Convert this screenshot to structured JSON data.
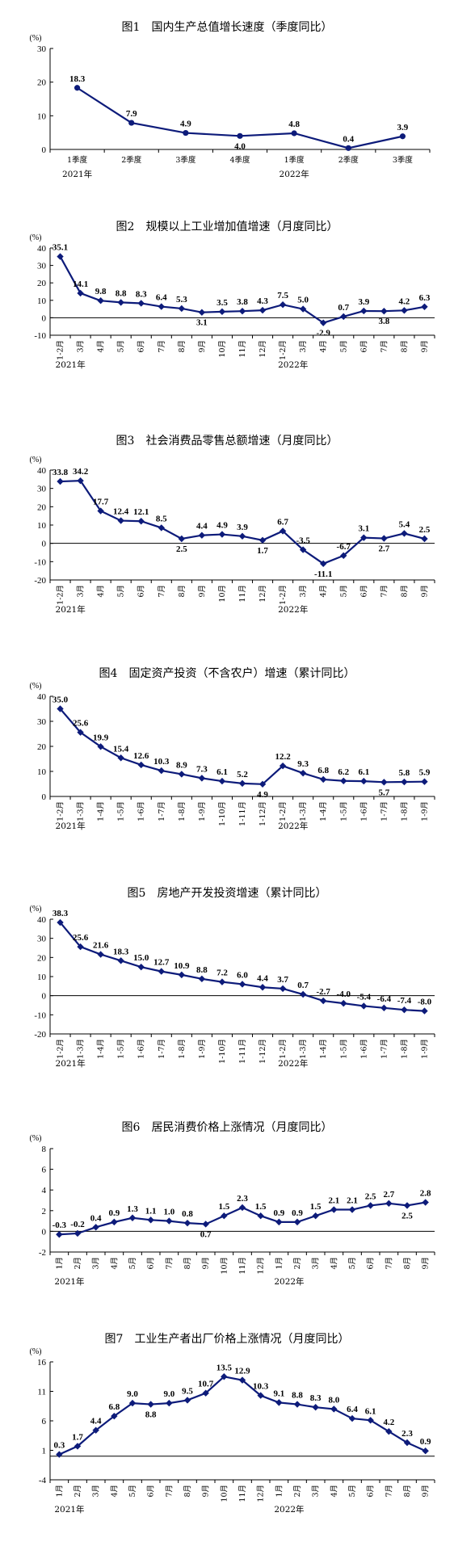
{
  "chart_data": [
    {
      "type": "line",
      "title": "图1　国内生产总值增长速度（季度同比）",
      "unit": "(%)",
      "categories": [
        "1季度",
        "2季度",
        "3季度",
        "4季度",
        "1季度",
        "2季度",
        "3季度"
      ],
      "year_labels": [
        {
          "label": "2021年",
          "index": 0
        },
        {
          "label": "2022年",
          "index": 4
        }
      ],
      "values": [
        18.3,
        7.9,
        4.9,
        4.0,
        4.8,
        0.4,
        3.9
      ],
      "labels": [
        "18.3",
        "7.9",
        "4.9",
        "4.0",
        "4.8",
        "0.4",
        "3.9"
      ],
      "ylim": [
        0,
        30
      ],
      "yticks": [
        0,
        10,
        20,
        30
      ],
      "marker": "circle",
      "color": "#0d1b7a",
      "grid": false
    },
    {
      "type": "line",
      "title": "图2　规模以上工业增加值增速（月度同比）",
      "unit": "(%)",
      "categories": [
        "1-2月",
        "3月",
        "4月",
        "5月",
        "6月",
        "7月",
        "8月",
        "9月",
        "10月",
        "11月",
        "12月",
        "1-2月",
        "3月",
        "4月",
        "5月",
        "6月",
        "7月",
        "8月",
        "9月"
      ],
      "year_labels": [
        {
          "label": "2021年",
          "index": 0
        },
        {
          "label": "2022年",
          "index": 11
        }
      ],
      "values": [
        35.1,
        14.1,
        9.8,
        8.8,
        8.3,
        6.4,
        5.3,
        3.1,
        3.5,
        3.8,
        4.3,
        7.5,
        5.0,
        -2.9,
        0.7,
        3.9,
        3.8,
        4.2,
        6.3
      ],
      "labels": [
        "35.1",
        "14.1",
        "9.8",
        "8.8",
        "8.3",
        "6.4",
        "5.3",
        "3.1",
        "3.5",
        "3.8",
        "4.3",
        "7.5",
        "5.0",
        "-2.9",
        "0.7",
        "3.9",
        "3.8",
        "4.2",
        "6.3"
      ],
      "ylim": [
        -10,
        40
      ],
      "yticks": [
        -10,
        0,
        10,
        20,
        30,
        40
      ],
      "marker": "diamond",
      "color": "#0d1b7a",
      "grid": false
    },
    {
      "type": "line",
      "title": "图3　社会消费品零售总额增速（月度同比）",
      "unit": "(%)",
      "categories": [
        "1-2月",
        "3月",
        "4月",
        "5月",
        "6月",
        "7月",
        "8月",
        "9月",
        "10月",
        "11月",
        "12月",
        "1-2月",
        "3月",
        "4月",
        "5月",
        "6月",
        "7月",
        "8月",
        "9月"
      ],
      "year_labels": [
        {
          "label": "2021年",
          "index": 0
        },
        {
          "label": "2022年",
          "index": 11
        }
      ],
      "values": [
        33.8,
        34.2,
        17.7,
        12.4,
        12.1,
        8.5,
        2.5,
        4.4,
        4.9,
        3.9,
        1.7,
        6.7,
        -3.5,
        -11.1,
        -6.7,
        3.1,
        2.7,
        5.4,
        2.5
      ],
      "labels": [
        "33.8",
        "34.2",
        "17.7",
        "12.4",
        "12.1",
        "8.5",
        "2.5",
        "4.4",
        "4.9",
        "3.9",
        "1.7",
        "6.7",
        "-3.5",
        "-11.1",
        "-6.7",
        "3.1",
        "2.7",
        "5.4",
        "2.5"
      ],
      "ylim": [
        -20,
        40
      ],
      "yticks": [
        -20,
        -10,
        0,
        10,
        20,
        30,
        40
      ],
      "marker": "diamond",
      "color": "#0d1b7a",
      "grid": false
    },
    {
      "type": "line",
      "title": "图4　固定资产投资（不含农户）增速（累计同比）",
      "unit": "(%)",
      "categories": [
        "1-2月",
        "1-3月",
        "1-4月",
        "1-5月",
        "1-6月",
        "1-7月",
        "1-8月",
        "1-9月",
        "1-10月",
        "1-11月",
        "1-12月",
        "1-2月",
        "1-3月",
        "1-4月",
        "1-5月",
        "1-6月",
        "1-7月",
        "1-8月",
        "1-9月"
      ],
      "year_labels": [
        {
          "label": "2021年",
          "index": 0
        },
        {
          "label": "2022年",
          "index": 11
        }
      ],
      "values": [
        35.0,
        25.6,
        19.9,
        15.4,
        12.6,
        10.3,
        8.9,
        7.3,
        6.1,
        5.2,
        4.9,
        12.2,
        9.3,
        6.8,
        6.2,
        6.1,
        5.7,
        5.8,
        5.9
      ],
      "labels": [
        "35.0",
        "25.6",
        "19.9",
        "15.4",
        "12.6",
        "10.3",
        "8.9",
        "7.3",
        "6.1",
        "5.2",
        "4.9",
        "12.2",
        "9.3",
        "6.8",
        "6.2",
        "6.1",
        "5.7",
        "5.8",
        "5.9"
      ],
      "ylim": [
        0,
        40
      ],
      "yticks": [
        0,
        10,
        20,
        30,
        40
      ],
      "marker": "diamond",
      "color": "#0d1b7a",
      "grid": false
    },
    {
      "type": "line",
      "title": "图5　房地产开发投资增速（累计同比）",
      "unit": "(%)",
      "categories": [
        "1-2月",
        "1-3月",
        "1-4月",
        "1-5月",
        "1-6月",
        "1-7月",
        "1-8月",
        "1-9月",
        "1-10月",
        "1-11月",
        "1-12月",
        "1-2月",
        "1-3月",
        "1-4月",
        "1-5月",
        "1-6月",
        "1-7月",
        "1-8月",
        "1-9月"
      ],
      "year_labels": [
        {
          "label": "2021年",
          "index": 0
        },
        {
          "label": "2022年",
          "index": 11
        }
      ],
      "values": [
        38.3,
        25.6,
        21.6,
        18.3,
        15.0,
        12.7,
        10.9,
        8.8,
        7.2,
        6.0,
        4.4,
        3.7,
        0.7,
        -2.7,
        -4.0,
        -5.4,
        -6.4,
        -7.4,
        -8.0
      ],
      "labels": [
        "38.3",
        "25.6",
        "21.6",
        "18.3",
        "15.0",
        "12.7",
        "10.9",
        "8.8",
        "7.2",
        "6.0",
        "4.4",
        "3.7",
        "0.7",
        "-2.7",
        "-4.0",
        "-5.4",
        "-6.4",
        "-7.4",
        "-8.0"
      ],
      "ylim": [
        -20,
        40
      ],
      "yticks": [
        -20,
        -10,
        0,
        10,
        20,
        30,
        40
      ],
      "marker": "diamond",
      "color": "#0d1b7a",
      "grid": false
    },
    {
      "type": "line",
      "title": "图6　居民消费价格上涨情况（月度同比）",
      "unit": "(%)",
      "categories": [
        "1月",
        "2月",
        "3月",
        "4月",
        "5月",
        "6月",
        "7月",
        "8月",
        "9月",
        "10月",
        "11月",
        "12月",
        "1月",
        "2月",
        "3月",
        "4月",
        "5月",
        "6月",
        "7月",
        "8月",
        "9月"
      ],
      "year_labels": [
        {
          "label": "2021年",
          "index": 0
        },
        {
          "label": "2022年",
          "index": 12
        }
      ],
      "values": [
        -0.3,
        -0.2,
        0.4,
        0.9,
        1.3,
        1.1,
        1.0,
        0.8,
        0.7,
        1.5,
        2.3,
        1.5,
        0.9,
        0.9,
        1.5,
        2.1,
        2.1,
        2.5,
        2.7,
        2.5,
        2.8
      ],
      "labels": [
        "-0.3",
        "-0.2",
        "0.4",
        "0.9",
        "1.3",
        "1.1",
        "1.0",
        "0.8",
        "0.7",
        "1.5",
        "2.3",
        "1.5",
        "0.9",
        "0.9",
        "1.5",
        "2.1",
        "2.1",
        "2.5",
        "2.7",
        "2.5",
        "2.8"
      ],
      "ylim": [
        -2,
        8
      ],
      "yticks": [
        -2,
        0,
        2,
        4,
        6,
        8
      ],
      "marker": "diamond",
      "color": "#0d1b7a",
      "grid": false
    },
    {
      "type": "line",
      "title": "图7　工业生产者出厂价格上涨情况（月度同比）",
      "unit": "(%)",
      "categories": [
        "1月",
        "2月",
        "3月",
        "4月",
        "5月",
        "6月",
        "7月",
        "8月",
        "9月",
        "10月",
        "11月",
        "12月",
        "1月",
        "2月",
        "3月",
        "4月",
        "5月",
        "6月",
        "7月",
        "8月",
        "9月"
      ],
      "year_labels": [
        {
          "label": "2021年",
          "index": 0
        },
        {
          "label": "2022年",
          "index": 12
        }
      ],
      "values": [
        0.3,
        1.7,
        4.4,
        6.8,
        9.0,
        8.8,
        9.0,
        9.5,
        10.7,
        13.5,
        12.9,
        10.3,
        9.1,
        8.8,
        8.3,
        8.0,
        6.4,
        6.1,
        4.2,
        2.3,
        0.9
      ],
      "labels": [
        "0.3",
        "1.7",
        "4.4",
        "6.8",
        "9.0",
        "8.8",
        "9.0",
        "9.5",
        "10.7",
        "13.5",
        "12.9",
        "10.3",
        "9.1",
        "8.8",
        "8.3",
        "8.0",
        "6.4",
        "6.1",
        "4.2",
        "2.3",
        "0.9"
      ],
      "ylim": [
        -4,
        16
      ],
      "yticks": [
        -4,
        1,
        6,
        11,
        16
      ],
      "marker": "diamond",
      "color": "#0d1b7a",
      "grid": false
    }
  ]
}
